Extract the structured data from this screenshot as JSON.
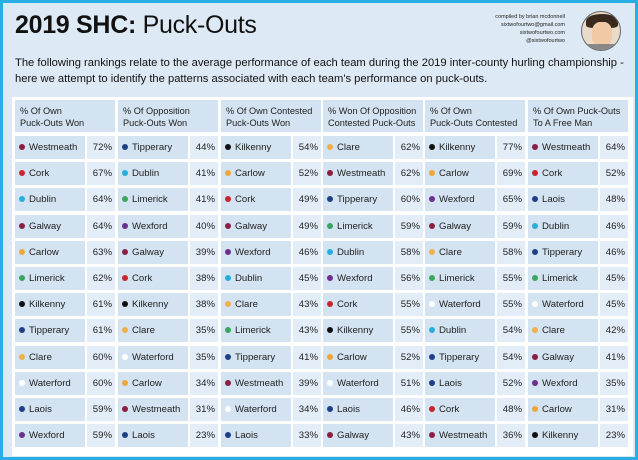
{
  "title": {
    "bold": "2019 SHC:",
    "rest": " Puck-Outs"
  },
  "credits": [
    "compiled by brian mcdonnell",
    "sixtwofourtwo@gmail.com",
    "sixtwofourtwo.com",
    "@sixtwofourtwo"
  ],
  "description": "The following rankings relate to the average performance of each team during the 2019 inter-county hurling championship - here we attempt to identify the patterns associated with each team's performance on puck-outs.",
  "team_colors": {
    "Westmeath": "#8a1f41",
    "Cork": "#c8262f",
    "Dublin": "#27aedb",
    "Galway": "#8a1f41",
    "Carlow": "#f0a73a",
    "Limerick": "#3aa660",
    "Kilkenny": "#111111",
    "Tipperary": "#1f3f86",
    "Clare": "#f0b04a",
    "Waterford": "#ffffff",
    "Laois": "#1f3f86",
    "Wexford": "#6b2f8e"
  },
  "columns": [
    {
      "header": [
        "% Of Own",
        "Puck-Outs Won"
      ],
      "rows": [
        [
          "Westmeath",
          "72%"
        ],
        [
          "Cork",
          "67%"
        ],
        [
          "Dublin",
          "64%"
        ],
        [
          "Galway",
          "64%"
        ],
        [
          "Carlow",
          "63%"
        ],
        [
          "Limerick",
          "62%"
        ],
        [
          "Kilkenny",
          "61%"
        ],
        [
          "Tipperary",
          "61%"
        ],
        [
          "Clare",
          "60%"
        ],
        [
          "Waterford",
          "60%"
        ],
        [
          "Laois",
          "59%"
        ],
        [
          "Wexford",
          "59%"
        ]
      ]
    },
    {
      "header": [
        "% Of Opposition",
        "Puck-Outs Won"
      ],
      "rows": [
        [
          "Tipperary",
          "44%"
        ],
        [
          "Dublin",
          "41%"
        ],
        [
          "Limerick",
          "41%"
        ],
        [
          "Wexford",
          "40%"
        ],
        [
          "Galway",
          "39%"
        ],
        [
          "Cork",
          "38%"
        ],
        [
          "Kilkenny",
          "38%"
        ],
        [
          "Clare",
          "35%"
        ],
        [
          "Waterford",
          "35%"
        ],
        [
          "Carlow",
          "34%"
        ],
        [
          "Westmeath",
          "31%"
        ],
        [
          "Laois",
          "23%"
        ]
      ]
    },
    {
      "header": [
        "% Of Own Contested",
        "Puck-Outs Won"
      ],
      "rows": [
        [
          "Kilkenny",
          "54%"
        ],
        [
          "Carlow",
          "52%"
        ],
        [
          "Cork",
          "49%"
        ],
        [
          "Galway",
          "49%"
        ],
        [
          "Wexford",
          "46%"
        ],
        [
          "Dublin",
          "45%"
        ],
        [
          "Clare",
          "43%"
        ],
        [
          "Limerick",
          "43%"
        ],
        [
          "Tipperary",
          "41%"
        ],
        [
          "Westmeath",
          "39%"
        ],
        [
          "Waterford",
          "34%"
        ],
        [
          "Laois",
          "33%"
        ]
      ]
    },
    {
      "header": [
        "% Won Of Opposition",
        "Contested Puck-Outs"
      ],
      "rows": [
        [
          "Clare",
          "62%"
        ],
        [
          "Westmeath",
          "62%"
        ],
        [
          "Tipperary",
          "60%"
        ],
        [
          "Limerick",
          "59%"
        ],
        [
          "Dublin",
          "58%"
        ],
        [
          "Wexford",
          "56%"
        ],
        [
          "Cork",
          "55%"
        ],
        [
          "Kilkenny",
          "55%"
        ],
        [
          "Carlow",
          "52%"
        ],
        [
          "Waterford",
          "51%"
        ],
        [
          "Laois",
          "46%"
        ],
        [
          "Galway",
          "43%"
        ]
      ]
    },
    {
      "header": [
        "% Of Own",
        "Puck-Outs Contested"
      ],
      "rows": [
        [
          "Kilkenny",
          "77%"
        ],
        [
          "Carlow",
          "69%"
        ],
        [
          "Wexford",
          "65%"
        ],
        [
          "Galway",
          "59%"
        ],
        [
          "Clare",
          "58%"
        ],
        [
          "Limerick",
          "55%"
        ],
        [
          "Waterford",
          "55%"
        ],
        [
          "Dublin",
          "54%"
        ],
        [
          "Tipperary",
          "54%"
        ],
        [
          "Laois",
          "52%"
        ],
        [
          "Cork",
          "48%"
        ],
        [
          "Westmeath",
          "36%"
        ]
      ]
    },
    {
      "header": [
        "% Of Own Puck-Outs",
        "To A Free Man"
      ],
      "rows": [
        [
          "Westmeath",
          "64%"
        ],
        [
          "Cork",
          "52%"
        ],
        [
          "Laois",
          "48%"
        ],
        [
          "Dublin",
          "46%"
        ],
        [
          "Tipperary",
          "46%"
        ],
        [
          "Limerick",
          "45%"
        ],
        [
          "Waterford",
          "45%"
        ],
        [
          "Clare",
          "42%"
        ],
        [
          "Galway",
          "41%"
        ],
        [
          "Wexford",
          "35%"
        ],
        [
          "Carlow",
          "31%"
        ],
        [
          "Kilkenny",
          "23%"
        ]
      ]
    }
  ]
}
